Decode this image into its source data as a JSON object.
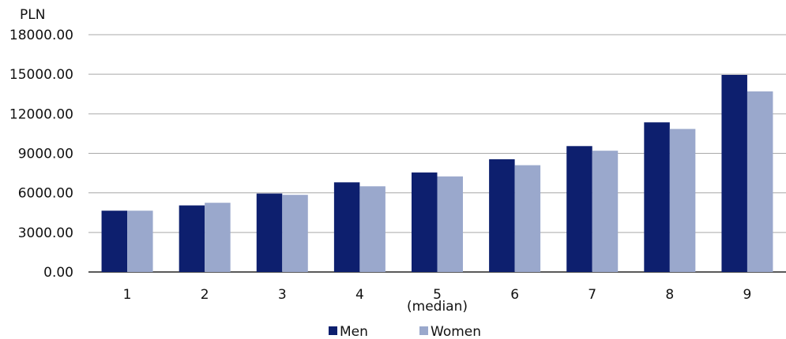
{
  "chart_data": {
    "type": "bar",
    "ylabel": "PLN",
    "xlabel": "",
    "categories": [
      "1",
      "2",
      "3",
      "4",
      "5",
      "6",
      "7",
      "8",
      "9"
    ],
    "category_sublabels": {
      "5": "(median)"
    },
    "y_ticks": [
      "0.00",
      "3000.00",
      "6000.00",
      "9000.00",
      "12000.00",
      "15000.00",
      "18000.00"
    ],
    "ylim": [
      0,
      18000
    ],
    "grid": true,
    "legend_position": "bottom",
    "series": [
      {
        "name": "Men",
        "color": "#0d1f6e",
        "values": [
          4650,
          5050,
          5950,
          6800,
          7550,
          8550,
          9550,
          11350,
          14950
        ]
      },
      {
        "name": "Women",
        "color": "#9aa8cc",
        "values": [
          4650,
          5250,
          5850,
          6500,
          7250,
          8100,
          9200,
          10850,
          13700
        ]
      }
    ]
  }
}
